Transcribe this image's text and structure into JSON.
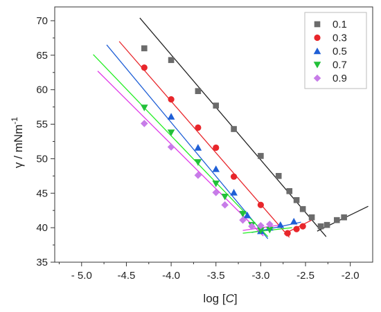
{
  "chart_data": {
    "type": "scatter",
    "xlabel": "log [",
    "xlabel_italic": "C",
    "xlabel_end": "]",
    "ylabel": "γ / mNm",
    "ylabel_sup": "-1",
    "xlim": [
      -5.3,
      -1.75
    ],
    "ylim": [
      35,
      72
    ],
    "xticks": [
      -5.0,
      -4.5,
      -4.0,
      -3.5,
      -3.0,
      -2.5,
      -2.0
    ],
    "xtick_labels": [
      "- 5.0",
      "-4.5",
      "-4.0",
      "-3.5",
      "-3.0",
      "-2.5",
      "-2.0"
    ],
    "yticks": [
      35,
      40,
      45,
      50,
      55,
      60,
      65,
      70
    ],
    "ytick_labels": [
      "35",
      "40",
      "45",
      "50",
      "55",
      "60",
      "65",
      "70"
    ],
    "grid": false,
    "legend_position": "top-right",
    "series": [
      {
        "name": "0.1",
        "marker": "square",
        "color": "#6b6b6b",
        "line_color": "#222222",
        "x": [
          -4.3,
          -4.0,
          -3.7,
          -3.5,
          -3.3,
          -3.0,
          -2.8,
          -2.68,
          -2.6,
          -2.53,
          -2.43,
          -2.33,
          -2.26,
          -2.15,
          -2.07
        ],
        "y": [
          66.0,
          64.3,
          59.8,
          57.7,
          54.3,
          50.4,
          47.5,
          45.3,
          44.0,
          42.7,
          41.5,
          40.2,
          40.4,
          41.1,
          41.5
        ],
        "fit_lines": [
          [
            [
              -4.35,
              70.4
            ],
            [
              -2.27,
              38.7
            ]
          ],
          [
            [
              -2.37,
              39.5
            ],
            [
              -1.8,
              43.1
            ]
          ]
        ]
      },
      {
        "name": "0.3",
        "marker": "circle",
        "color": "#e8262b",
        "line_color": "#e8262b",
        "x": [
          -4.3,
          -4.0,
          -3.7,
          -3.5,
          -3.3,
          -3.0,
          -2.7,
          -2.6,
          -2.53
        ],
        "y": [
          63.2,
          58.6,
          54.5,
          51.6,
          47.4,
          43.3,
          39.2,
          39.8,
          40.2
        ],
        "fit_lines": [
          [
            [
              -4.58,
              67.0
            ],
            [
              -2.68,
              38.6
            ]
          ],
          [
            [
              -2.74,
              39.1
            ],
            [
              -2.4,
              41.3
            ]
          ]
        ]
      },
      {
        "name": "0.5",
        "marker": "triangle-up",
        "color": "#1f5fd6",
        "line_color": "#1f5fd6",
        "x": [
          -4.0,
          -3.7,
          -3.5,
          -3.3,
          -3.15,
          -3.0,
          -2.9,
          -2.78,
          -2.63
        ],
        "y": [
          56.1,
          51.6,
          48.5,
          45.1,
          41.8,
          39.5,
          40.0,
          40.4,
          40.9
        ],
        "fit_lines": [
          [
            [
              -4.72,
              66.5
            ],
            [
              -2.92,
              38.4
            ]
          ],
          [
            [
              -3.1,
              39.3
            ],
            [
              -2.55,
              40.8
            ]
          ]
        ]
      },
      {
        "name": "0.7",
        "marker": "triangle-down",
        "color": "#22c039",
        "line_color": "#22ee22",
        "x": [
          -4.3,
          -4.0,
          -3.7,
          -3.5,
          -3.4,
          -3.2,
          -3.1,
          -3.0,
          -2.9
        ],
        "y": [
          57.4,
          53.8,
          49.5,
          46.4,
          44.5,
          42.0,
          40.4,
          39.6,
          39.7
        ],
        "fit_lines": [
          [
            [
              -4.87,
              65.1
            ],
            [
              -2.92,
              38.7
            ]
          ],
          [
            [
              -3.2,
              39.2
            ],
            [
              -2.65,
              40.0
            ]
          ]
        ]
      },
      {
        "name": "0.9",
        "marker": "diamond",
        "color": "#c77ce8",
        "line_color": "#e03ae8",
        "x": [
          -4.3,
          -4.0,
          -3.7,
          -3.5,
          -3.4,
          -3.2,
          -3.1,
          -3.0,
          -2.9
        ],
        "y": [
          55.1,
          51.7,
          47.6,
          45.1,
          43.3,
          41.1,
          40.2,
          40.3,
          40.5
        ],
        "fit_lines": [
          [
            [
              -4.82,
              62.7
            ],
            [
              -2.97,
              38.8
            ]
          ],
          [
            [
              -3.2,
              39.6
            ],
            [
              -2.78,
              40.4
            ]
          ]
        ]
      }
    ]
  }
}
